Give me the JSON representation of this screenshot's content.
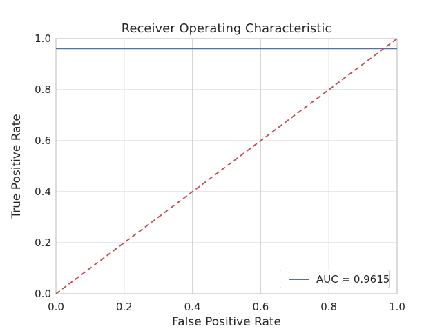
{
  "chart_data": {
    "type": "line",
    "title": "Receiver Operating Characteristic",
    "xlabel": "False Positive Rate",
    "ylabel": "True Positive Rate",
    "xlim": [
      0.0,
      1.0
    ],
    "ylim": [
      0.0,
      1.0
    ],
    "grid": true,
    "xticks": [
      {
        "value": 0.0,
        "label": "0.0"
      },
      {
        "value": 0.2,
        "label": "0.2"
      },
      {
        "value": 0.4,
        "label": "0.4"
      },
      {
        "value": 0.6,
        "label": "0.6"
      },
      {
        "value": 0.8,
        "label": "0.8"
      },
      {
        "value": 1.0,
        "label": "1.0"
      }
    ],
    "yticks": [
      {
        "value": 0.0,
        "label": "0.0"
      },
      {
        "value": 0.2,
        "label": "0.2"
      },
      {
        "value": 0.4,
        "label": "0.4"
      },
      {
        "value": 0.6,
        "label": "0.6"
      },
      {
        "value": 0.8,
        "label": "0.8"
      },
      {
        "value": 1.0,
        "label": "1.0"
      }
    ],
    "series": [
      {
        "id": "roc-curve-line",
        "name": "ROC curve",
        "color": "#4c72b0",
        "style": "solid",
        "points": [
          [
            0.0,
            0.9615
          ],
          [
            1.0,
            0.9615
          ]
        ]
      },
      {
        "id": "chance-diagonal-line",
        "name": "Chance diagonal",
        "color": "#c44e52",
        "style": "dashed",
        "points": [
          [
            0.0,
            0.0
          ],
          [
            1.0,
            1.0
          ]
        ]
      }
    ],
    "auc_value": 0.9615,
    "legend": {
      "position": "lower right",
      "entries": [
        {
          "label": "AUC = 0.9615",
          "color": "#4c72b0",
          "style": "solid"
        }
      ]
    }
  },
  "colors": {
    "background": "#ffffff",
    "grid": "#d2d2d2",
    "spine": "#c4c4c4",
    "text": "#262626"
  }
}
